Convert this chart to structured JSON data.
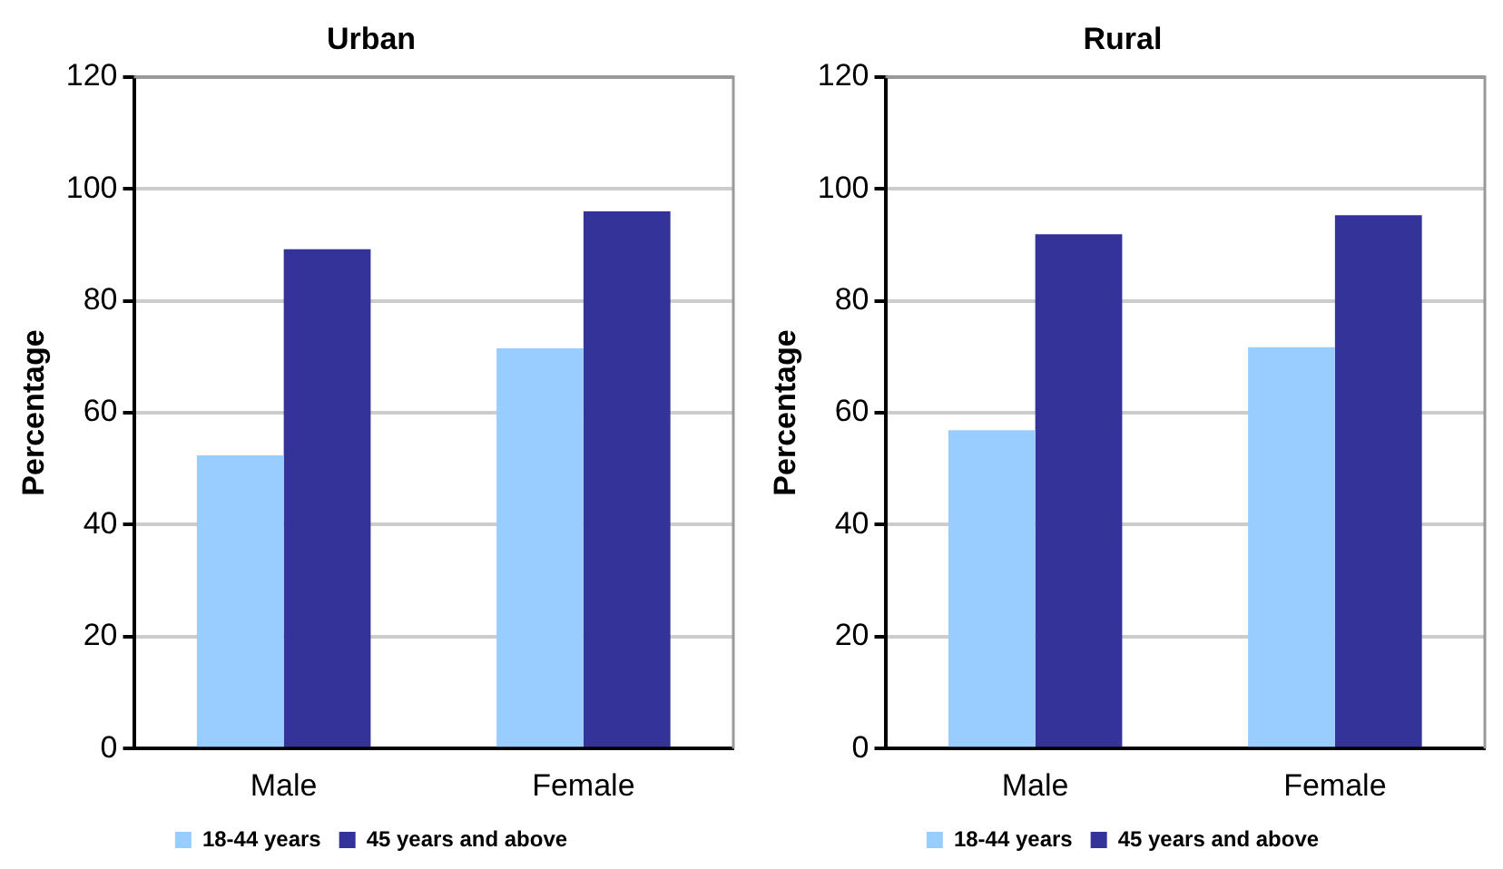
{
  "chart_data": [
    {
      "type": "bar",
      "title": "Urban",
      "ylabel": "Percentage",
      "categories": [
        "Male",
        "Female"
      ],
      "series": [
        {
          "name": "18-44 years",
          "color": "#99ccff",
          "values": [
            52.4,
            71.5
          ]
        },
        {
          "name": "45 years and above",
          "color": "#333399",
          "values": [
            89.2,
            96
          ]
        }
      ],
      "ylim": [
        0,
        120
      ],
      "yticks": [
        0,
        20,
        40,
        60,
        80,
        100,
        120
      ],
      "grid": "y",
      "legend": "bottom"
    },
    {
      "type": "bar",
      "title": "Rural",
      "ylabel": "Percentage",
      "categories": [
        "Male",
        "Female"
      ],
      "series": [
        {
          "name": "18-44 years",
          "color": "#99ccff",
          "values": [
            56.9,
            71.7
          ]
        },
        {
          "name": "45 years and above",
          "color": "#333399",
          "values": [
            91.9,
            95.3
          ]
        }
      ],
      "ylim": [
        0,
        120
      ],
      "yticks": [
        0,
        20,
        40,
        60,
        80,
        100,
        120
      ],
      "grid": "y",
      "legend": "bottom"
    }
  ]
}
